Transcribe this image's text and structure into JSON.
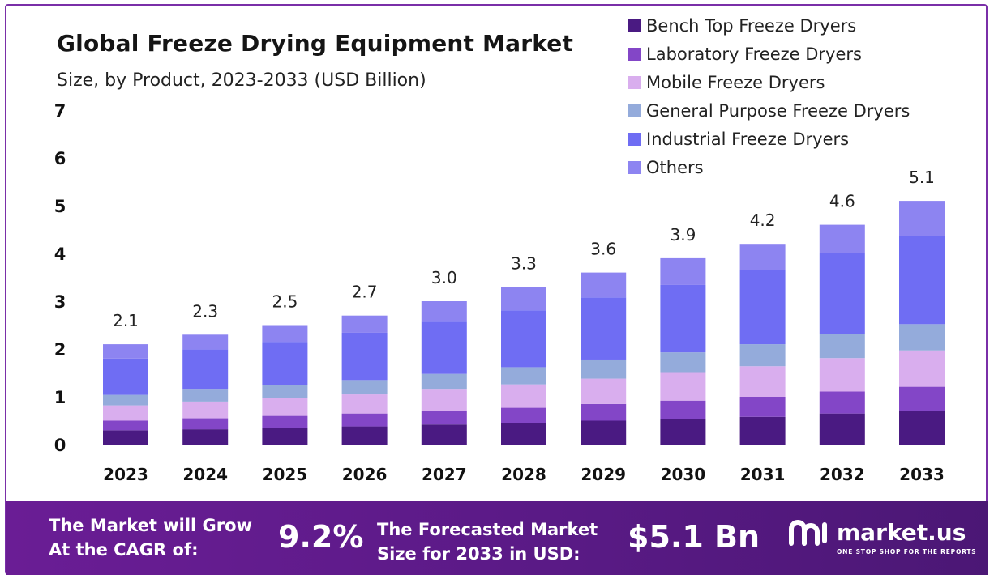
{
  "header": {
    "title": "Global Freeze Drying Equipment Market",
    "subtitle": "Size, by Product, 2023-2033 (USD Billion)"
  },
  "chart_data": {
    "type": "bar",
    "stacked": true,
    "title": "Global Freeze Drying Equipment Market",
    "subtitle": "Size, by Product, 2023-2033 (USD Billion)",
    "xlabel": "",
    "ylabel": "",
    "ylim": [
      0,
      7
    ],
    "yticks": [
      "0",
      "1",
      "2",
      "3",
      "4",
      "5",
      "6",
      "7"
    ],
    "grid": false,
    "legend_position": "top-right",
    "categories": [
      "2023",
      "2024",
      "2025",
      "2026",
      "2027",
      "2028",
      "2029",
      "2030",
      "2031",
      "2032",
      "2033"
    ],
    "totals": [
      "2.1",
      "2.3",
      "2.5",
      "2.7",
      "3.0",
      "3.3",
      "3.6",
      "3.9",
      "4.2",
      "4.6",
      "5.1"
    ],
    "series": [
      {
        "name": "Bench Top Freeze Dryers",
        "color": "#4a1a82",
        "values": [
          0.3,
          0.32,
          0.35,
          0.38,
          0.42,
          0.45,
          0.5,
          0.54,
          0.58,
          0.65,
          0.7
        ]
      },
      {
        "name": "Laboratory Freeze Dryers",
        "color": "#8346c7",
        "values": [
          0.2,
          0.23,
          0.25,
          0.27,
          0.29,
          0.32,
          0.35,
          0.38,
          0.42,
          0.46,
          0.51
        ]
      },
      {
        "name": "Mobile Freeze Dryers",
        "color": "#d9aeee",
        "values": [
          0.32,
          0.35,
          0.37,
          0.4,
          0.44,
          0.49,
          0.53,
          0.58,
          0.64,
          0.7,
          0.76
        ]
      },
      {
        "name": "General Purpose Freeze Dryers",
        "color": "#94abdb",
        "values": [
          0.22,
          0.25,
          0.27,
          0.3,
          0.33,
          0.36,
          0.4,
          0.43,
          0.46,
          0.5,
          0.55
        ]
      },
      {
        "name": "Industrial Freeze Dryers",
        "color": "#6f6df3",
        "values": [
          0.76,
          0.84,
          0.91,
          0.99,
          1.09,
          1.19,
          1.3,
          1.41,
          1.55,
          1.7,
          1.85
        ]
      },
      {
        "name": "Others",
        "color": "#8d84f1",
        "values": [
          0.3,
          0.31,
          0.35,
          0.36,
          0.43,
          0.49,
          0.52,
          0.56,
          0.55,
          0.59,
          0.73
        ]
      }
    ]
  },
  "footer": {
    "cagr_line1": "The Market will Grow",
    "cagr_line2": "At the CAGR of:",
    "cagr_value": "9.2%",
    "forecast_line1": "The Forecasted Market",
    "forecast_line2": "Size for 2033 in USD:",
    "forecast_value": "$5.1 Bn",
    "brand_name": "market.us",
    "brand_tagline": "ONE STOP SHOP FOR THE REPORTS"
  }
}
